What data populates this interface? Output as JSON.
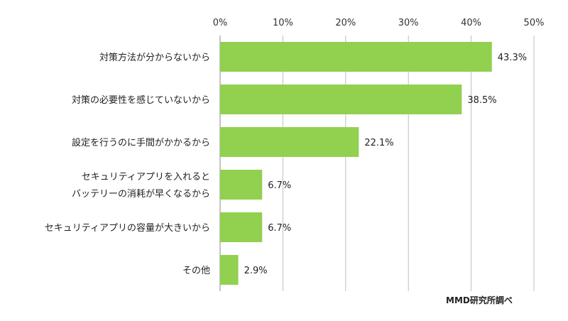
{
  "chart_data": {
    "type": "bar",
    "orientation": "horizontal",
    "categories": [
      [
        "対策方法が分からないから"
      ],
      [
        "対策の必要性を感じていないから"
      ],
      [
        "設定を行うのに手間がかかるから"
      ],
      [
        "セキュリティアプリを入れると",
        "バッテリーの消耗が早くなるから"
      ],
      [
        "セキュリティアプリの容量が大きいから"
      ],
      [
        "その他"
      ]
    ],
    "values": [
      43.3,
      38.5,
      22.1,
      6.7,
      6.7,
      2.9
    ],
    "value_labels": [
      "43.3%",
      "38.5%",
      "22.1%",
      "6.7%",
      "6.7%",
      "2.9%"
    ],
    "xlim": [
      0,
      50
    ],
    "xticks": [
      0,
      10,
      20,
      30,
      40,
      50
    ],
    "xtick_labels": [
      "0%",
      "10%",
      "20%",
      "30%",
      "40%",
      "50%"
    ],
    "title": "",
    "xlabel": "",
    "ylabel": "",
    "grid": "vertical",
    "axis_position": "top",
    "bar_color": "#92d050",
    "grid_color": "#bfbfbf"
  },
  "source": "MMD研究所調べ"
}
